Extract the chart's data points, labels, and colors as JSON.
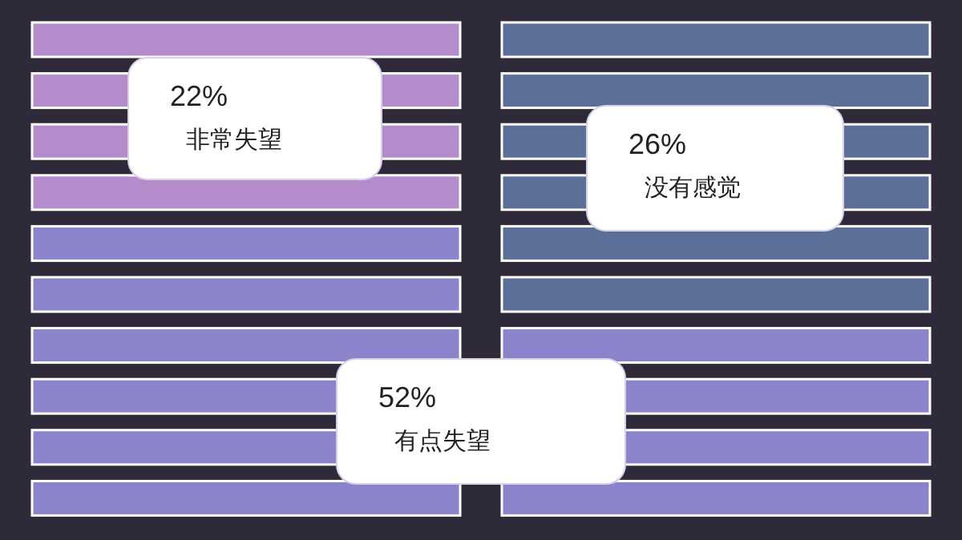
{
  "chart_data": {
    "type": "other",
    "categories": [
      "非常失望",
      "没有感觉",
      "有点失望"
    ],
    "values": [
      22,
      26,
      52
    ],
    "value_labels": [
      "22%",
      "26%",
      "52%"
    ],
    "colors": [
      "#b48ccc",
      "#5c6f98",
      "#8a84cc"
    ]
  }
}
